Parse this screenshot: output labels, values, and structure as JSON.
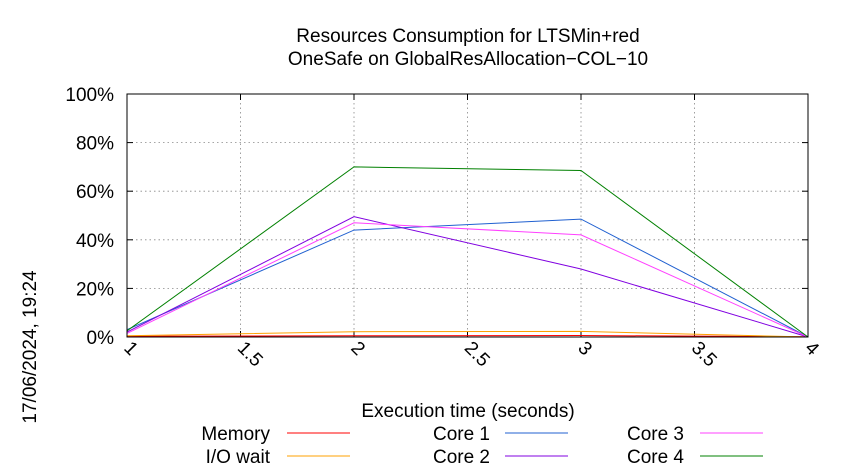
{
  "chart_data": {
    "type": "line",
    "title": [
      "Resources Consumption for LTSMin+red",
      "OneSafe on GlobalResAllocation−COL−10"
    ],
    "xlabel": "Execution time (seconds)",
    "ylabel": "",
    "xlim": [
      1,
      4
    ],
    "ylim": [
      0,
      100
    ],
    "x_ticks": [
      "1",
      "1.5",
      "2",
      "2.5",
      "3",
      "3.5",
      "4"
    ],
    "y_ticks": [
      "0%",
      "20%",
      "40%",
      "60%",
      "80%",
      "100%"
    ],
    "grid": true,
    "legend_position": "bottom",
    "timestamp": "17/06/2024, 19:24",
    "x": [
      1,
      2,
      3,
      4
    ],
    "series": [
      {
        "name": "Memory",
        "color": "#ff0000",
        "values": [
          0.3,
          0.5,
          0.6,
          0.1
        ]
      },
      {
        "name": "I/O wait",
        "color": "#ffa000",
        "values": [
          0.5,
          2.2,
          2.3,
          0
        ]
      },
      {
        "name": "Core 1",
        "color": "#2060d0",
        "values": [
          3,
          44,
          48.5,
          0
        ]
      },
      {
        "name": "Core 2",
        "color": "#8000e0",
        "values": [
          2,
          49.5,
          28,
          0
        ]
      },
      {
        "name": "Core 3",
        "color": "#ff40ff",
        "values": [
          1.5,
          47,
          42,
          0
        ]
      },
      {
        "name": "Core 4",
        "color": "#008000",
        "values": [
          2.5,
          70,
          68.5,
          0
        ]
      }
    ]
  }
}
